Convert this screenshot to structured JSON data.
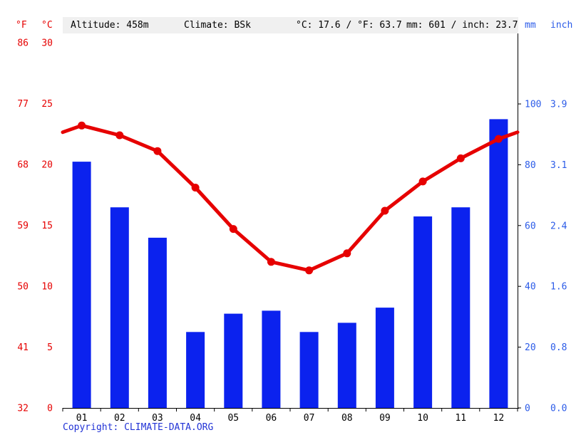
{
  "header": {
    "altitude": "Altitude: 458m",
    "climate": "Climate: BSk",
    "temp_summary": "°C: 17.6 / °F: 63.7",
    "precip_summary": "mm: 601 / inch: 23.7"
  },
  "axis_units": {
    "fahrenheit": "°F",
    "celsius": "°C",
    "mm": "mm",
    "inch": "inch"
  },
  "copyright": {
    "prefix": "Copyright: ",
    "link": "CLIMATE-DATA.ORG"
  },
  "colors": {
    "red": "#e60000",
    "bar_blue": "#0b22ee",
    "blue_axis": "#2b5be8",
    "copyright_blue": "#2233d6",
    "band_gray": "#f0f0f0",
    "axis_black": "#000000"
  },
  "chart_data": {
    "type": "bar+line climograph",
    "categories": [
      "01",
      "02",
      "03",
      "04",
      "05",
      "06",
      "07",
      "08",
      "09",
      "10",
      "11",
      "12"
    ],
    "series": [
      {
        "name": "Precipitation (mm)",
        "type": "bar",
        "values": [
          81,
          66,
          56,
          25,
          31,
          32,
          25,
          28,
          33,
          63,
          66,
          95
        ],
        "color": "#0b22ee"
      },
      {
        "name": "Temperature (°C)",
        "type": "line",
        "values": [
          23.2,
          22.4,
          21.1,
          18.1,
          14.7,
          12.0,
          11.3,
          12.7,
          16.2,
          18.6,
          20.5,
          22.1
        ],
        "color": "#e60000"
      }
    ],
    "axes": {
      "temp_c_ticks": [
        0,
        5,
        10,
        15,
        20,
        25,
        30
      ],
      "temp_f_ticks": [
        32,
        41,
        50,
        59,
        68,
        77,
        86
      ],
      "mm_ticks": [
        0,
        20,
        40,
        60,
        80,
        100
      ],
      "inch_ticks": [
        "0.0",
        "0.8",
        "1.6",
        "2.4",
        "3.1",
        "3.9"
      ],
      "temp_axis_range_c": [
        0,
        30
      ],
      "precip_axis_range_mm": [
        0,
        100
      ],
      "grid": false,
      "legend": "none"
    },
    "annual_mean_temp_c": 17.6,
    "annual_precip_mm": 601
  }
}
